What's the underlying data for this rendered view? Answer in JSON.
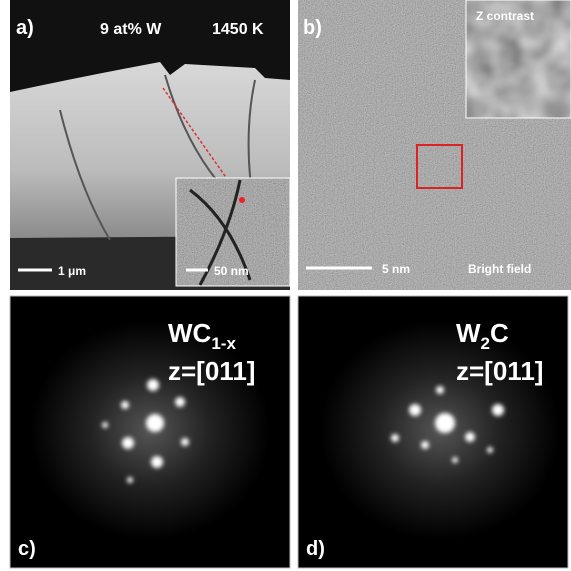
{
  "panels": [
    {
      "label": "a)",
      "composition": "9 at% W",
      "temperature": "1450 K",
      "scale_bar": "1 μm",
      "inset_scale_bar": "50 nm"
    },
    {
      "label": "b)",
      "inset_label": "Z contrast",
      "scale_bar": "5 nm",
      "mode": "Bright field"
    },
    {
      "label": "c)",
      "phase": {
        "base": "WC",
        "subscript": "1-x"
      },
      "zone_axis": "z=[011]"
    },
    {
      "label": "d)",
      "phase": {
        "base": "W",
        "subscript": "2",
        "suffix": "C"
      },
      "zone_axis": "z=[011]"
    }
  ]
}
